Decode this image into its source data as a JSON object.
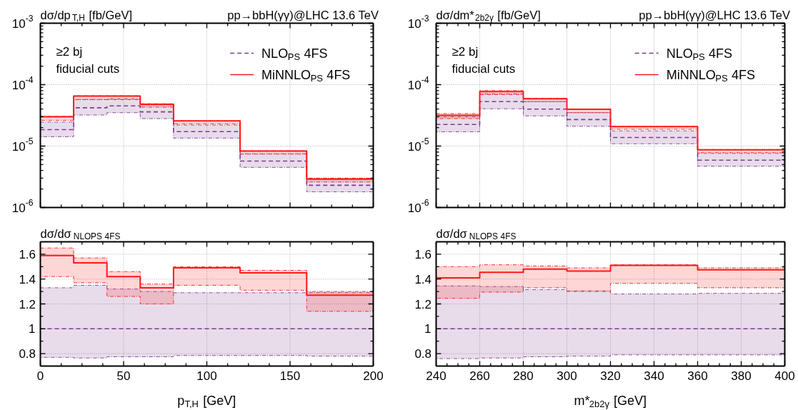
{
  "chart_data": [
    {
      "type": "step",
      "title": "pp→bbH(γγ)@LHC 13.6 TeV",
      "ylabel": "dσ/dp$_{T,H}$ [fb/GeV]",
      "annotations": [
        "≥2 bj",
        "fiducial cuts"
      ],
      "x": [
        0,
        20,
        40,
        60,
        80,
        120,
        160,
        200
      ],
      "series": [
        {
          "name": "NLO$_{PS}$ 4FS",
          "color": "#7d3c8f",
          "line_style": "dashed",
          "values": [
            1.85e-05,
            4.2e-05,
            4.5e-05,
            3.6e-05,
            1.72e-05,
            5.7e-06,
            2.3e-06,
            2.3e-06
          ],
          "lower": [
            1.42e-05,
            3.2e-05,
            3.5e-05,
            2.8e-05,
            1.35e-05,
            4.5e-06,
            1.8e-06,
            1.8e-06
          ],
          "upper": [
            2.46e-05,
            5.7e-05,
            5.9e-05,
            4.7e-05,
            2.2e-05,
            7.4e-06,
            3e-06,
            3e-06
          ]
        },
        {
          "name": "MiNNLO$_{PS}$ 4FS",
          "color": "#ff1a1a",
          "line_style": "solid",
          "values": [
            3e-05,
            6.5e-05,
            6.5e-05,
            4.8e-05,
            2.57e-05,
            8.3e-06,
            2.9e-06,
            2.9e-06
          ],
          "lower": [
            2.63e-05,
            5.75e-05,
            5.7e-05,
            4.3e-05,
            2.3e-05,
            7.5e-06,
            2.6e-06,
            2.6e-06
          ],
          "upper": [
            3.05e-05,
            6.6e-05,
            6.6e-05,
            4.9e-05,
            2.58e-05,
            8.4e-06,
            3e-06,
            3e-06
          ]
        }
      ],
      "xlim": [
        0,
        200
      ],
      "xticks": [
        0,
        50,
        100,
        150,
        200
      ],
      "ylim": [
        1e-06,
        0.001
      ],
      "yticks": [
        {
          "value": 1e-06,
          "label": "10$^{-6}$"
        },
        {
          "value": 1e-05,
          "label": "10$^{-5}$"
        },
        {
          "value": 0.0001,
          "label": "10$^{-4}$"
        },
        {
          "value": 0.001,
          "label": "10$^{-3}$"
        }
      ],
      "log": "y",
      "grid": true,
      "legend": "top right",
      "tick_labels": "y"
    },
    {
      "type": "step",
      "title": "pp→bbH(γγ)@LHC 13.6 TeV",
      "ylabel": "dσ/dm*$_{2b2γ}$ [fb/GeV]",
      "annotations": [
        "≥2 bj",
        "fiducial cuts"
      ],
      "x": [
        240,
        260,
        280,
        300,
        320,
        360,
        400
      ],
      "series": [
        {
          "name": "NLO$_{PS}$ 4FS",
          "color": "#7d3c8f",
          "line_style": "dashed",
          "values": [
            2.25e-05,
            5.3e-05,
            4e-05,
            2.7e-05,
            1.38e-05,
            5.9e-06,
            5.9e-06
          ],
          "lower": [
            1.71e-05,
            4.05e-05,
            3.1e-05,
            2.1e-05,
            1.09e-05,
            4.7e-06,
            4.7e-06
          ],
          "upper": [
            3e-05,
            7.1e-05,
            5.3e-05,
            3.5e-05,
            1.77e-05,
            7.6e-06,
            7.6e-06
          ]
        },
        {
          "name": "MiNNLO$_{PS}$ 4FS",
          "color": "#ff1a1a",
          "line_style": "solid",
          "values": [
            3.17e-05,
            7.7e-05,
            5.9e-05,
            3.96e-05,
            2.08e-05,
            8.7e-06,
            8.7e-06
          ],
          "lower": [
            2.8e-05,
            6.9e-05,
            5.3e-05,
            3.5e-05,
            1.88e-05,
            7.8e-06,
            7.8e-06
          ],
          "upper": [
            3.38e-05,
            8e-05,
            6e-05,
            4e-05,
            2.09e-05,
            8.8e-06,
            8.8e-06
          ]
        }
      ],
      "xlim": [
        240,
        400
      ],
      "xticks": [
        240,
        260,
        280,
        300,
        320,
        340,
        360,
        380,
        400
      ],
      "ylim": [
        1e-06,
        0.001
      ],
      "yticks": [
        {
          "value": 1e-06,
          "label": "10$^{-6}$"
        },
        {
          "value": 1e-05,
          "label": "10$^{-5}$"
        },
        {
          "value": 0.0001,
          "label": "10$^{-4}$"
        },
        {
          "value": 0.001,
          "label": "10$^{-3}$"
        }
      ],
      "log": "y",
      "grid": true,
      "legend": "top right",
      "tick_labels": "y"
    },
    {
      "type": "step",
      "ylabel": "dσ/dσ$_{NLO}$$_{PS}$$_{ 4FS}$",
      "xlabel": "p$_{T,H}$ [GeV]",
      "x": [
        0,
        20,
        40,
        60,
        80,
        120,
        160,
        200
      ],
      "series": [
        {
          "color": "#7d3c8f",
          "line_style": "dashed",
          "values": [
            1,
            1,
            1,
            1,
            1,
            1,
            1,
            1
          ],
          "lower": [
            0.77,
            0.765,
            0.775,
            0.775,
            0.785,
            0.785,
            0.78,
            0.78
          ],
          "upper": [
            1.33,
            1.35,
            1.32,
            1.3,
            1.29,
            1.29,
            1.29,
            1.29
          ]
        },
        {
          "color": "#ff1a1a",
          "line_style": "solid",
          "values": [
            1.59,
            1.53,
            1.42,
            1.33,
            1.49,
            1.45,
            1.27,
            1.27
          ],
          "lower": [
            1.42,
            1.37,
            1.26,
            1.2,
            1.35,
            1.31,
            1.14,
            1.14
          ],
          "upper": [
            1.65,
            1.57,
            1.46,
            1.36,
            1.5,
            1.47,
            1.3,
            1.3
          ]
        }
      ],
      "xlim": [
        0,
        200
      ],
      "xticks": [
        0,
        50,
        100,
        150,
        200
      ],
      "ylim": [
        0.7,
        1.7
      ],
      "yticks": [
        0.8,
        1,
        1.2,
        1.4,
        1.6
      ],
      "grid": true
    },
    {
      "type": "step",
      "ylabel": "dσ/dσ$_{NLO}$$_{PS}$$_{ 4FS}$",
      "xlabel": "m*$_{2b2γ}$ [GeV]",
      "x": [
        240,
        260,
        280,
        300,
        320,
        360,
        400
      ],
      "series": [
        {
          "color": "#7d3c8f",
          "line_style": "dashed",
          "values": [
            1,
            1,
            1,
            1,
            1,
            1,
            1
          ],
          "lower": [
            0.76,
            0.765,
            0.775,
            0.78,
            0.79,
            0.79,
            0.79
          ],
          "upper": [
            1.345,
            1.34,
            1.315,
            1.305,
            1.28,
            1.285,
            1.285
          ]
        },
        {
          "color": "#ff1a1a",
          "line_style": "solid",
          "values": [
            1.41,
            1.455,
            1.48,
            1.465,
            1.51,
            1.475,
            1.475
          ],
          "lower": [
            1.245,
            1.295,
            1.33,
            1.3,
            1.365,
            1.33,
            1.33
          ],
          "upper": [
            1.5,
            1.515,
            1.505,
            1.49,
            1.515,
            1.49,
            1.49
          ]
        }
      ],
      "xlim": [
        240,
        400
      ],
      "xticks": [
        240,
        260,
        280,
        300,
        320,
        340,
        360,
        380,
        400
      ],
      "ylim": [
        0.7,
        1.7
      ],
      "yticks": [
        0.8,
        1,
        1.2,
        1.4,
        1.6
      ],
      "grid": true
    }
  ]
}
